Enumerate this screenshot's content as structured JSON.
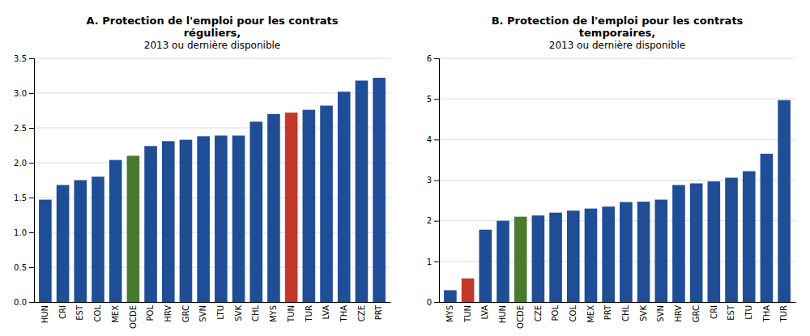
{
  "chart_data": [
    {
      "type": "bar",
      "title": [
        "A. Protection de l'emploi pour les contrats",
        "réguliers,"
      ],
      "subtitle": "2013 ou dernière disponible",
      "categories": [
        "HUN",
        "CRI",
        "EST",
        "COL",
        "MEX",
        "OCDE",
        "POL",
        "HRV",
        "GRC",
        "SVN",
        "LTU",
        "SVK",
        "CHL",
        "MYS",
        "TUN",
        "TUR",
        "LVA",
        "THA",
        "CZE",
        "PRT"
      ],
      "values": [
        1.47,
        1.68,
        1.75,
        1.8,
        2.04,
        2.1,
        2.24,
        2.31,
        2.33,
        2.38,
        2.39,
        2.39,
        2.59,
        2.7,
        2.72,
        2.76,
        2.82,
        3.02,
        3.18,
        3.22
      ],
      "colors": [
        "#1f4e96",
        "#1f4e96",
        "#1f4e96",
        "#1f4e96",
        "#1f4e96",
        "#4a7a2e",
        "#1f4e96",
        "#1f4e96",
        "#1f4e96",
        "#1f4e96",
        "#1f4e96",
        "#1f4e96",
        "#1f4e96",
        "#1f4e96",
        "#c0392b",
        "#1f4e96",
        "#1f4e96",
        "#1f4e96",
        "#1f4e96",
        "#1f4e96"
      ],
      "ylim": [
        0,
        3.5
      ],
      "yticks": [
        {
          "value": 0,
          "label": "0.0"
        },
        0.5,
        {
          "value": 1,
          "label": "1.0"
        },
        1.5,
        {
          "value": 2,
          "label": "2.0"
        },
        2.5,
        {
          "value": 3,
          "label": "3.0"
        },
        3.5
      ],
      "grid": true
    },
    {
      "type": "bar",
      "title": [
        "B. Protection de l'emploi pour les contrats",
        "temporaires,"
      ],
      "subtitle": "2013 ou dernière disponible",
      "categories": [
        "MYS",
        "TUN",
        "LVA",
        "HUN",
        "OCDE",
        "CZE",
        "POL",
        "COL",
        "MEX",
        "PRT",
        "CHL",
        "SVK",
        "SVN",
        "HRV",
        "GRC",
        "CRI",
        "EST",
        "LTU",
        "THA",
        "TUR"
      ],
      "values": [
        0.29,
        0.58,
        1.78,
        2.0,
        2.1,
        2.13,
        2.2,
        2.25,
        2.3,
        2.35,
        2.46,
        2.47,
        2.52,
        2.88,
        2.92,
        2.97,
        3.06,
        3.22,
        3.65,
        4.97
      ],
      "colors": [
        "#1f4e96",
        "#c0392b",
        "#1f4e96",
        "#1f4e96",
        "#4a7a2e",
        "#1f4e96",
        "#1f4e96",
        "#1f4e96",
        "#1f4e96",
        "#1f4e96",
        "#1f4e96",
        "#1f4e96",
        "#1f4e96",
        "#1f4e96",
        "#1f4e96",
        "#1f4e96",
        "#1f4e96",
        "#1f4e96",
        "#1f4e96",
        "#1f4e96"
      ],
      "ylim": [
        0,
        6
      ],
      "yticks": [
        0,
        1,
        2,
        3,
        4,
        5,
        6
      ],
      "grid": true
    }
  ]
}
